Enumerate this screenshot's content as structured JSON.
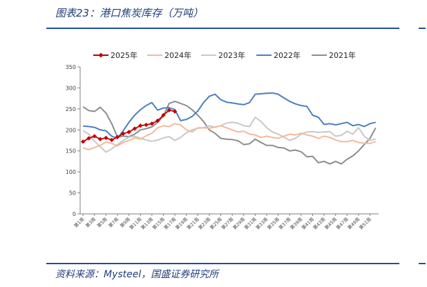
{
  "header": {
    "title": "图表23：港口焦炭库存（万吨）"
  },
  "footer": {
    "source": "资料来源：Mysteel，国盛证券研究所"
  },
  "colors": {
    "rule": "#1f4e9a",
    "title_text": "#1f3f7a"
  },
  "chart_data": {
    "type": "line",
    "title": "",
    "xlabel": "",
    "ylabel": "",
    "ylim": [
      0,
      350
    ],
    "yticks": [
      0,
      50,
      100,
      150,
      200,
      250,
      300,
      350
    ],
    "grid": false,
    "legend_position": "top",
    "x_labels": [
      "第1周",
      "第3周",
      "第5周",
      "第7周",
      "第9周",
      "第11周",
      "第13周",
      "第15周",
      "第17周",
      "第19周",
      "第21周",
      "第23周",
      "第25周",
      "第27周",
      "第29周",
      "第31周",
      "第33周",
      "第35周",
      "第37周",
      "第39周",
      "第41周",
      "第43周",
      "第45周",
      "第47周",
      "第49周",
      "第51周"
    ],
    "series": [
      {
        "name": "2025年",
        "color": "#c00000",
        "marker": "diamond",
        "values": [
          172,
          180,
          185,
          178,
          181,
          176,
          183,
          191,
          195,
          203,
          210,
          212,
          215,
          222,
          235,
          247,
          244
        ]
      },
      {
        "name": "2024年",
        "color": "#f4b89a",
        "values": [
          157,
          153,
          158,
          163,
          171,
          168,
          162,
          170,
          175,
          181,
          178,
          186,
          192,
          205,
          210,
          208,
          215,
          212,
          200,
          195,
          205,
          205,
          204,
          207,
          210,
          205,
          200,
          195,
          197,
          190,
          188,
          182,
          185,
          182,
          180,
          185,
          190,
          188,
          192,
          188,
          185,
          180,
          185,
          182,
          176,
          172,
          172,
          175,
          170,
          168,
          168,
          172
        ]
      },
      {
        "name": "2023年",
        "color": "#c8c8c8",
        "values": [
          198,
          190,
          173,
          160,
          147,
          155,
          165,
          175,
          183,
          185,
          180,
          176,
          173,
          176,
          181,
          184,
          175,
          182,
          193,
          200,
          204,
          205,
          210,
          206,
          210,
          216,
          218,
          216,
          210,
          208,
          230,
          220,
          205,
          195,
          190,
          183,
          175,
          180,
          190,
          195,
          196,
          194,
          195,
          196,
          185,
          187,
          197,
          190,
          205,
          185,
          175,
          178
        ]
      },
      {
        "name": "2022年",
        "color": "#4a7ec0",
        "values": [
          209,
          208,
          206,
          200,
          198,
          185,
          180,
          198,
          218,
          235,
          248,
          258,
          265,
          247,
          252,
          253,
          248,
          222,
          225,
          232,
          245,
          265,
          280,
          285,
          272,
          266,
          264,
          262,
          260,
          265,
          285,
          286,
          287,
          288,
          285,
          276,
          268,
          262,
          258,
          256,
          235,
          230,
          213,
          215,
          212,
          215,
          218,
          210,
          213,
          208,
          215,
          218
        ]
      },
      {
        "name": "2021年",
        "color": "#8c8c8c",
        "values": [
          255,
          246,
          244,
          254,
          240,
          215,
          183,
          185,
          184,
          190,
          200,
          203,
          207,
          218,
          233,
          263,
          268,
          263,
          258,
          248,
          235,
          220,
          200,
          192,
          180,
          178,
          177,
          174,
          165,
          167,
          178,
          170,
          163,
          163,
          158,
          157,
          150,
          152,
          148,
          136,
          137,
          122,
          125,
          119,
          125,
          119,
          130,
          138,
          150,
          165,
          180,
          205
        ]
      }
    ]
  }
}
